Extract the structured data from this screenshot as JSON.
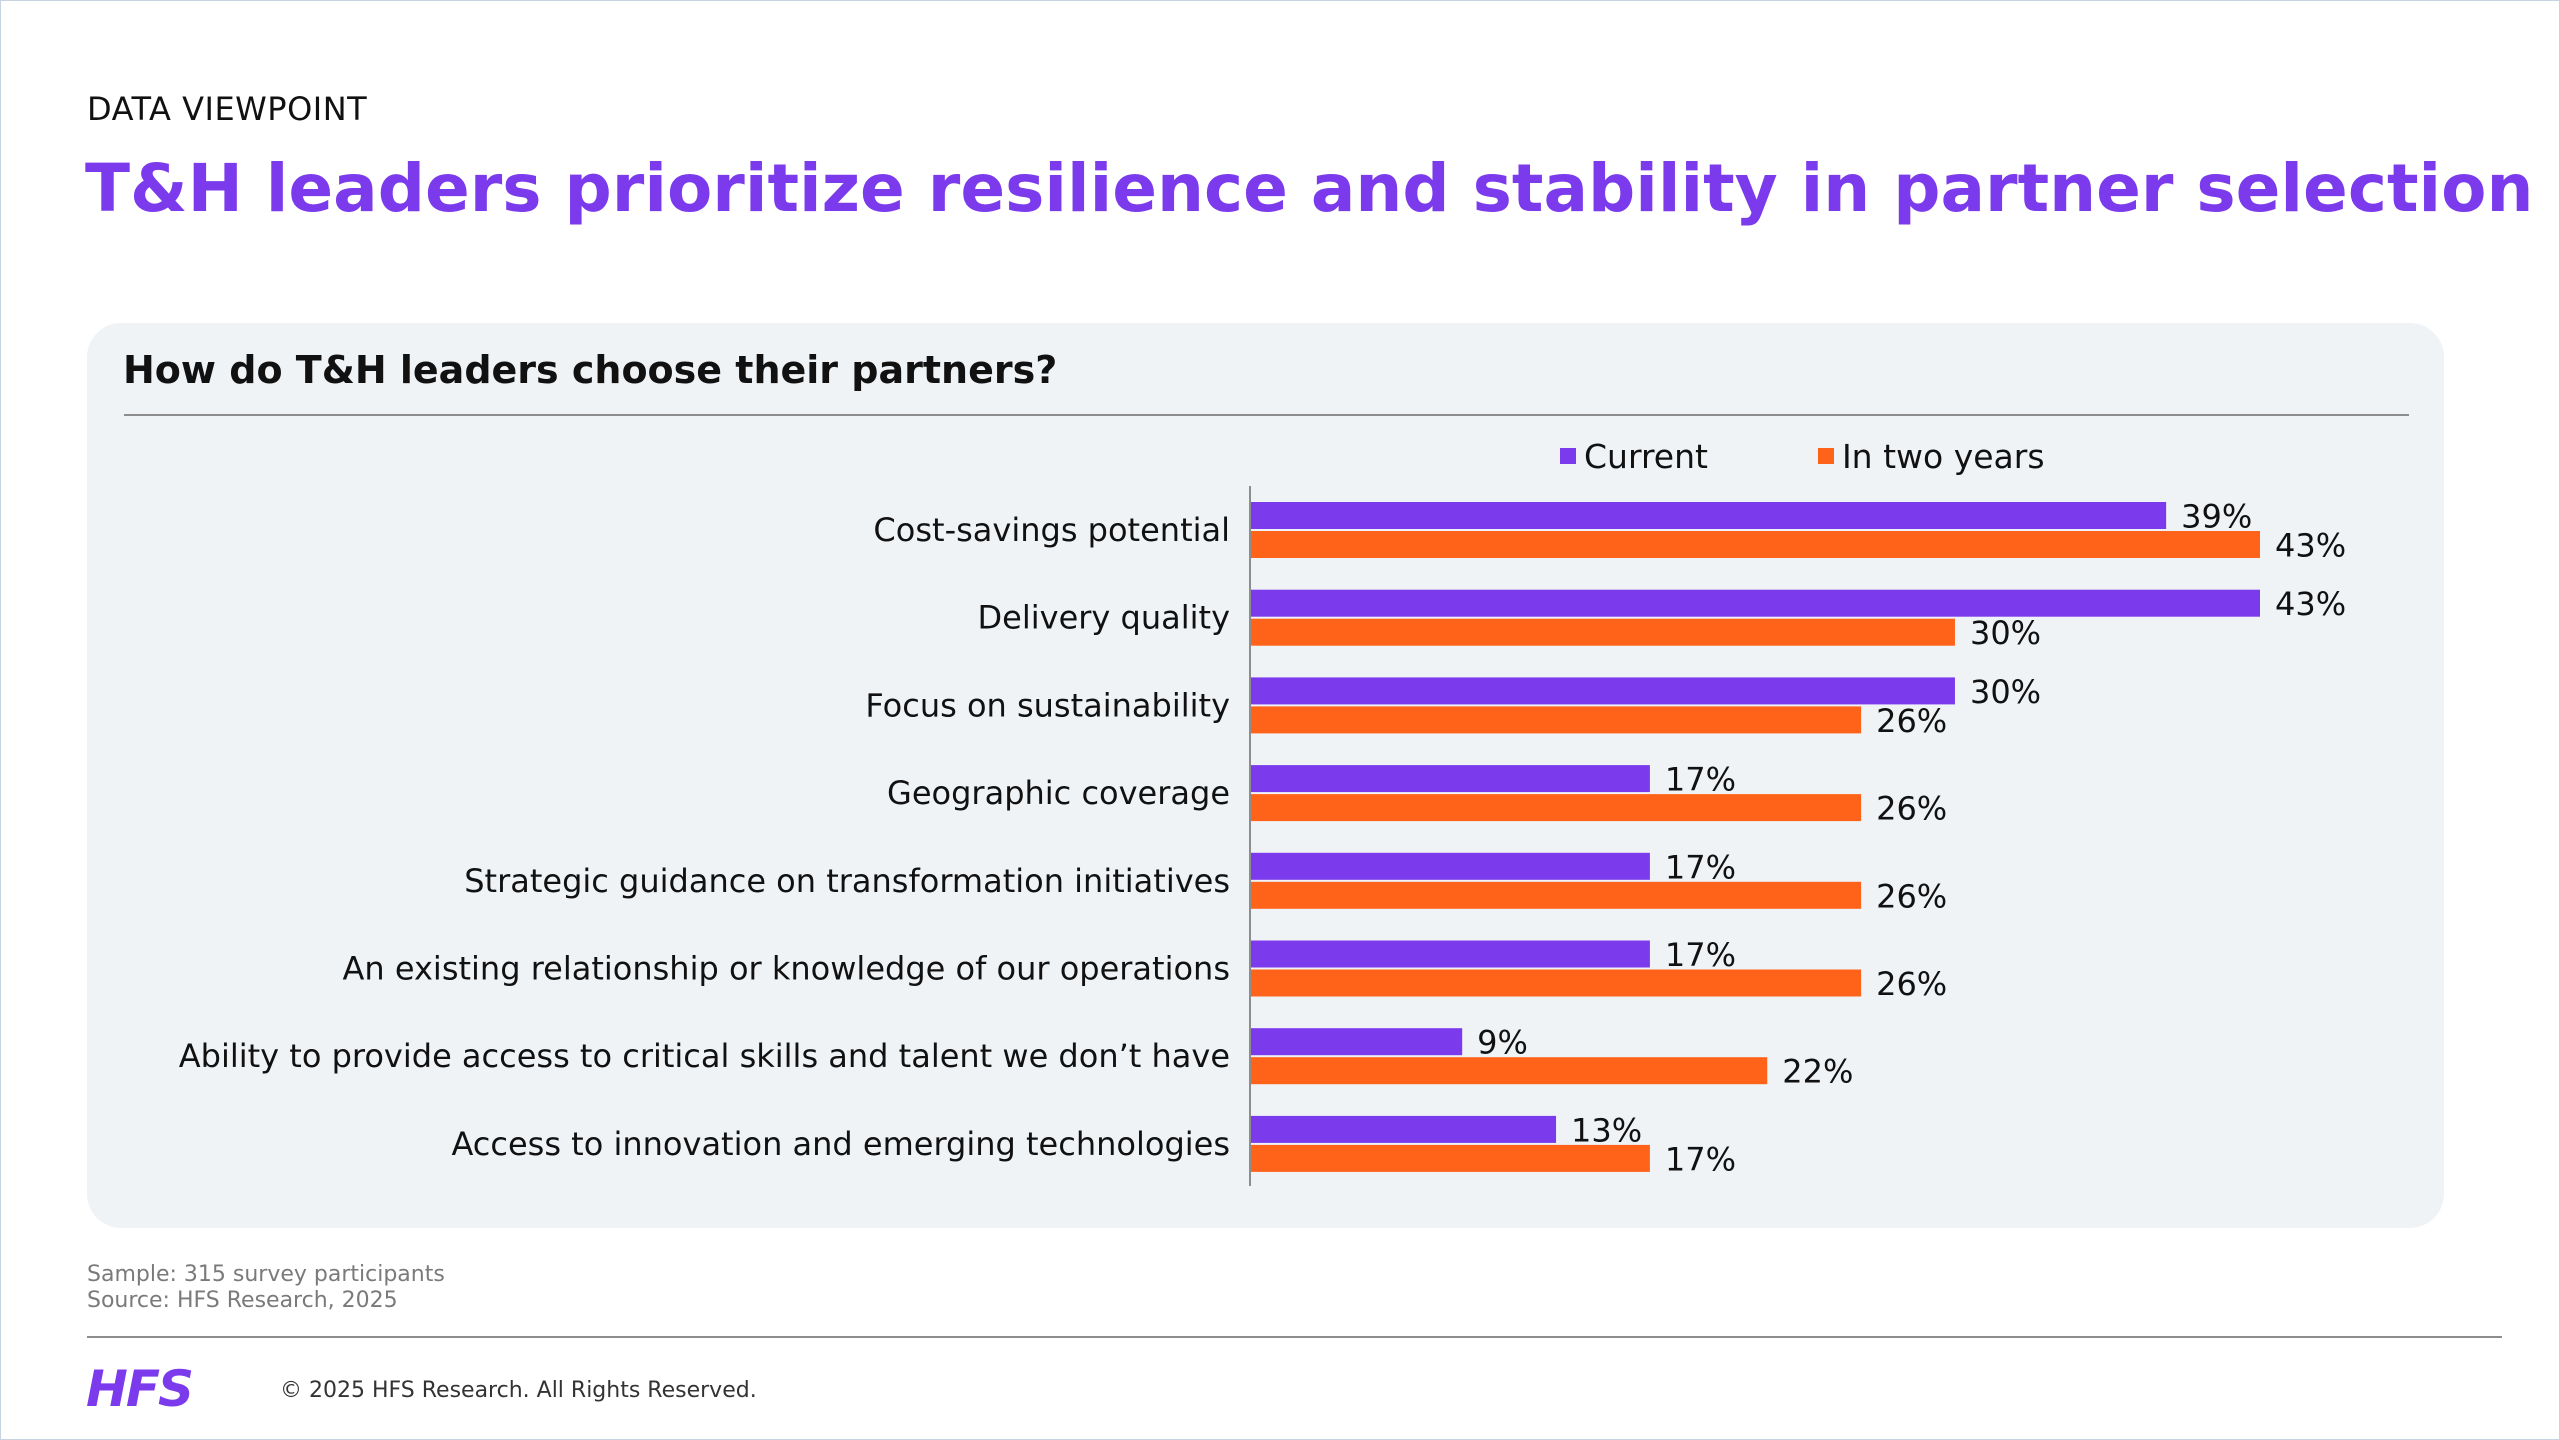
{
  "header": {
    "eyebrow": "DATA VIEWPOINT",
    "title": "T&H leaders prioritize resilience and stability in partner selection"
  },
  "colors": {
    "accent": "#7c3aed",
    "current": "#7c3aed",
    "two_years": "#ff6319"
  },
  "chart_data": {
    "type": "bar",
    "orientation": "horizontal",
    "title": "How do T&H leaders choose their partners?",
    "categories": [
      "Cost-savings potential",
      "Delivery quality",
      "Focus on sustainability",
      "Geographic coverage",
      "Strategic guidance on transformation initiatives",
      "An existing relationship or knowledge of our operations",
      "Ability to provide access to critical skills and talent we don’t have",
      "Access to innovation and emerging technologies"
    ],
    "series": [
      {
        "name": "Current",
        "values": [
          39,
          43,
          30,
          17,
          17,
          17,
          9,
          13
        ]
      },
      {
        "name": "In two years",
        "values": [
          43,
          30,
          26,
          26,
          26,
          26,
          22,
          17
        ]
      }
    ],
    "value_suffix": "%",
    "xlim": [
      0,
      43
    ],
    "legend_position": "top",
    "grid": false
  },
  "notes": {
    "sample": "Sample: 315 survey participants",
    "source": "Source: HFS Research, 2025"
  },
  "footer": {
    "logo": "HFS",
    "copyright": "© 2025 HFS Research. All Rights Reserved."
  }
}
